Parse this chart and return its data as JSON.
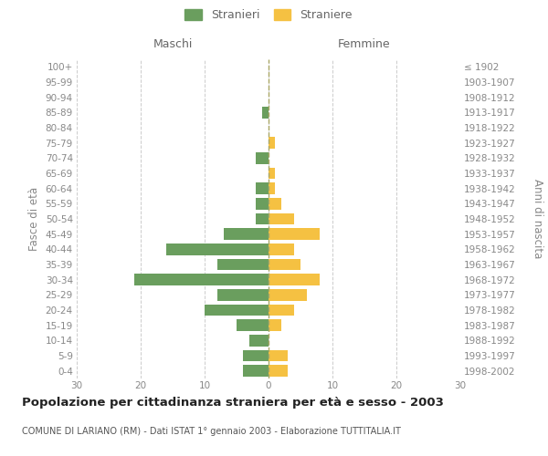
{
  "age_groups": [
    "0-4",
    "5-9",
    "10-14",
    "15-19",
    "20-24",
    "25-29",
    "30-34",
    "35-39",
    "40-44",
    "45-49",
    "50-54",
    "55-59",
    "60-64",
    "65-69",
    "70-74",
    "75-79",
    "80-84",
    "85-89",
    "90-94",
    "95-99",
    "100+"
  ],
  "birth_years": [
    "1998-2002",
    "1993-1997",
    "1988-1992",
    "1983-1987",
    "1978-1982",
    "1973-1977",
    "1968-1972",
    "1963-1967",
    "1958-1962",
    "1953-1957",
    "1948-1952",
    "1943-1947",
    "1938-1942",
    "1933-1937",
    "1928-1932",
    "1923-1927",
    "1918-1922",
    "1913-1917",
    "1908-1912",
    "1903-1907",
    "≤ 1902"
  ],
  "males": [
    4,
    4,
    3,
    5,
    10,
    8,
    21,
    8,
    16,
    7,
    2,
    2,
    2,
    0,
    2,
    0,
    0,
    1,
    0,
    0,
    0
  ],
  "females": [
    3,
    3,
    0,
    2,
    4,
    6,
    8,
    5,
    4,
    8,
    4,
    2,
    1,
    1,
    0,
    1,
    0,
    0,
    0,
    0,
    0
  ],
  "male_color": "#6a9e5e",
  "female_color": "#f5c142",
  "title": "Popolazione per cittadinanza straniera per età e sesso - 2003",
  "subtitle": "COMUNE DI LARIANO (RM) - Dati ISTAT 1° gennaio 2003 - Elaborazione TUTTITALIA.IT",
  "header_left": "Maschi",
  "header_right": "Femmine",
  "ylabel_left": "Fasce di età",
  "ylabel_right": "Anni di nascita",
  "legend_male": "Stranieri",
  "legend_female": "Straniere",
  "xlim": 30,
  "background_color": "#ffffff",
  "grid_color": "#cccccc",
  "bar_height": 0.75,
  "label_color": "#888888",
  "header_color": "#666666"
}
